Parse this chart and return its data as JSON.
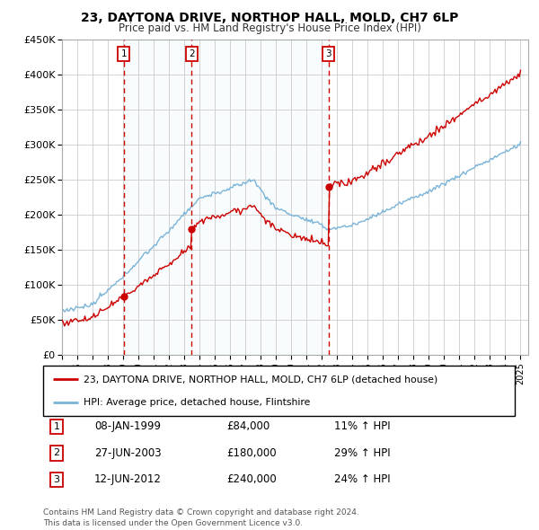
{
  "title": "23, DAYTONA DRIVE, NORTHOP HALL, MOLD, CH7 6LP",
  "subtitle": "Price paid vs. HM Land Registry's House Price Index (HPI)",
  "legend_line1": "23, DAYTONA DRIVE, NORTHOP HALL, MOLD, CH7 6LP (detached house)",
  "legend_line2": "HPI: Average price, detached house, Flintshire",
  "table_rows": [
    {
      "num": "1",
      "date": "08-JAN-1999",
      "price": "£84,000",
      "change": "11% ↑ HPI"
    },
    {
      "num": "2",
      "date": "27-JUN-2003",
      "price": "£180,000",
      "change": "29% ↑ HPI"
    },
    {
      "num": "3",
      "date": "12-JUN-2012",
      "price": "£240,000",
      "change": "24% ↑ HPI"
    }
  ],
  "footer": "Contains HM Land Registry data © Crown copyright and database right 2024.\nThis data is licensed under the Open Government Licence v3.0.",
  "hpi_color": "#7ab4d8",
  "price_color": "#cc0000",
  "bg_color": "#ffffff",
  "plot_bg": "#ffffff",
  "shade_color": "#ddeef8",
  "vline_color": "#cc0000",
  "purchase_dates": [
    1999.04,
    2003.49,
    2012.45
  ],
  "purchase_prices": [
    84000,
    180000,
    240000
  ],
  "ylim": [
    0,
    450000
  ],
  "yticks": [
    0,
    50000,
    100000,
    150000,
    200000,
    250000,
    300000,
    350000,
    400000,
    450000
  ],
  "start_year": 1995,
  "end_year": 2025
}
